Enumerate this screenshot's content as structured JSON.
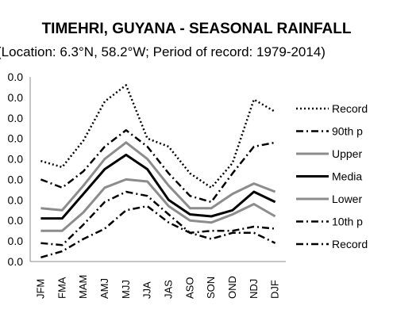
{
  "chart_data": {
    "type": "line",
    "title": "TIMEHRI, GUYANA - SEASONAL RAINFALL",
    "subtitle": "(Location: 6.3°N, 58.2°W; Period of record: 1979-2014)",
    "categories": [
      "JFM",
      "FMA",
      "MAM",
      "AMJ",
      "MJJ",
      "JJA",
      "JAS",
      "ASO",
      "SON",
      "OND",
      "NDJ",
      "DJF"
    ],
    "y_tick_labels": [
      "0.0",
      "0.0",
      "0.0",
      "0.0",
      "0.0",
      "0.0",
      "0.0",
      "0.0",
      "0.0",
      "0.0"
    ],
    "ylim": [
      0,
      9
    ],
    "grid": false,
    "legend_position": "right",
    "series": [
      {
        "name": "Record",
        "style": "dotted",
        "color": "#000000",
        "values": [
          4.9,
          4.6,
          5.9,
          7.8,
          8.6,
          6.0,
          5.6,
          4.3,
          3.6,
          4.8,
          7.9,
          7.3
        ]
      },
      {
        "name": "90th p",
        "style": "dashdot",
        "color": "#000000",
        "values": [
          4.0,
          3.6,
          4.4,
          5.6,
          6.4,
          5.6,
          4.3,
          3.2,
          2.9,
          4.3,
          5.6,
          5.8
        ]
      },
      {
        "name": "Upper",
        "style": "solid",
        "color": "#8c8c8c",
        "values": [
          2.6,
          2.5,
          3.7,
          5.0,
          5.8,
          5.0,
          3.7,
          2.6,
          2.6,
          3.3,
          3.8,
          3.4
        ]
      },
      {
        "name": "Media",
        "style": "solid",
        "color": "#000000",
        "values": [
          2.1,
          2.1,
          3.3,
          4.5,
          5.2,
          4.5,
          3.0,
          2.3,
          2.2,
          2.5,
          3.4,
          2.9
        ]
      },
      {
        "name": "Lower",
        "style": "solid",
        "color": "#8c8c8c",
        "values": [
          1.5,
          1.5,
          2.4,
          3.6,
          4.0,
          3.9,
          2.7,
          2.0,
          1.9,
          2.3,
          2.8,
          2.2
        ]
      },
      {
        "name": "10th p",
        "style": "dashdot",
        "color": "#000000",
        "values": [
          0.9,
          0.8,
          1.8,
          2.9,
          3.4,
          3.2,
          2.3,
          1.4,
          1.5,
          1.5,
          1.7,
          1.6
        ]
      },
      {
        "name": "Record",
        "style": "dashdot",
        "color": "#000000",
        "values": [
          0.2,
          0.5,
          1.1,
          1.6,
          2.5,
          2.7,
          1.9,
          1.4,
          1.1,
          1.4,
          1.4,
          0.9
        ]
      }
    ]
  }
}
